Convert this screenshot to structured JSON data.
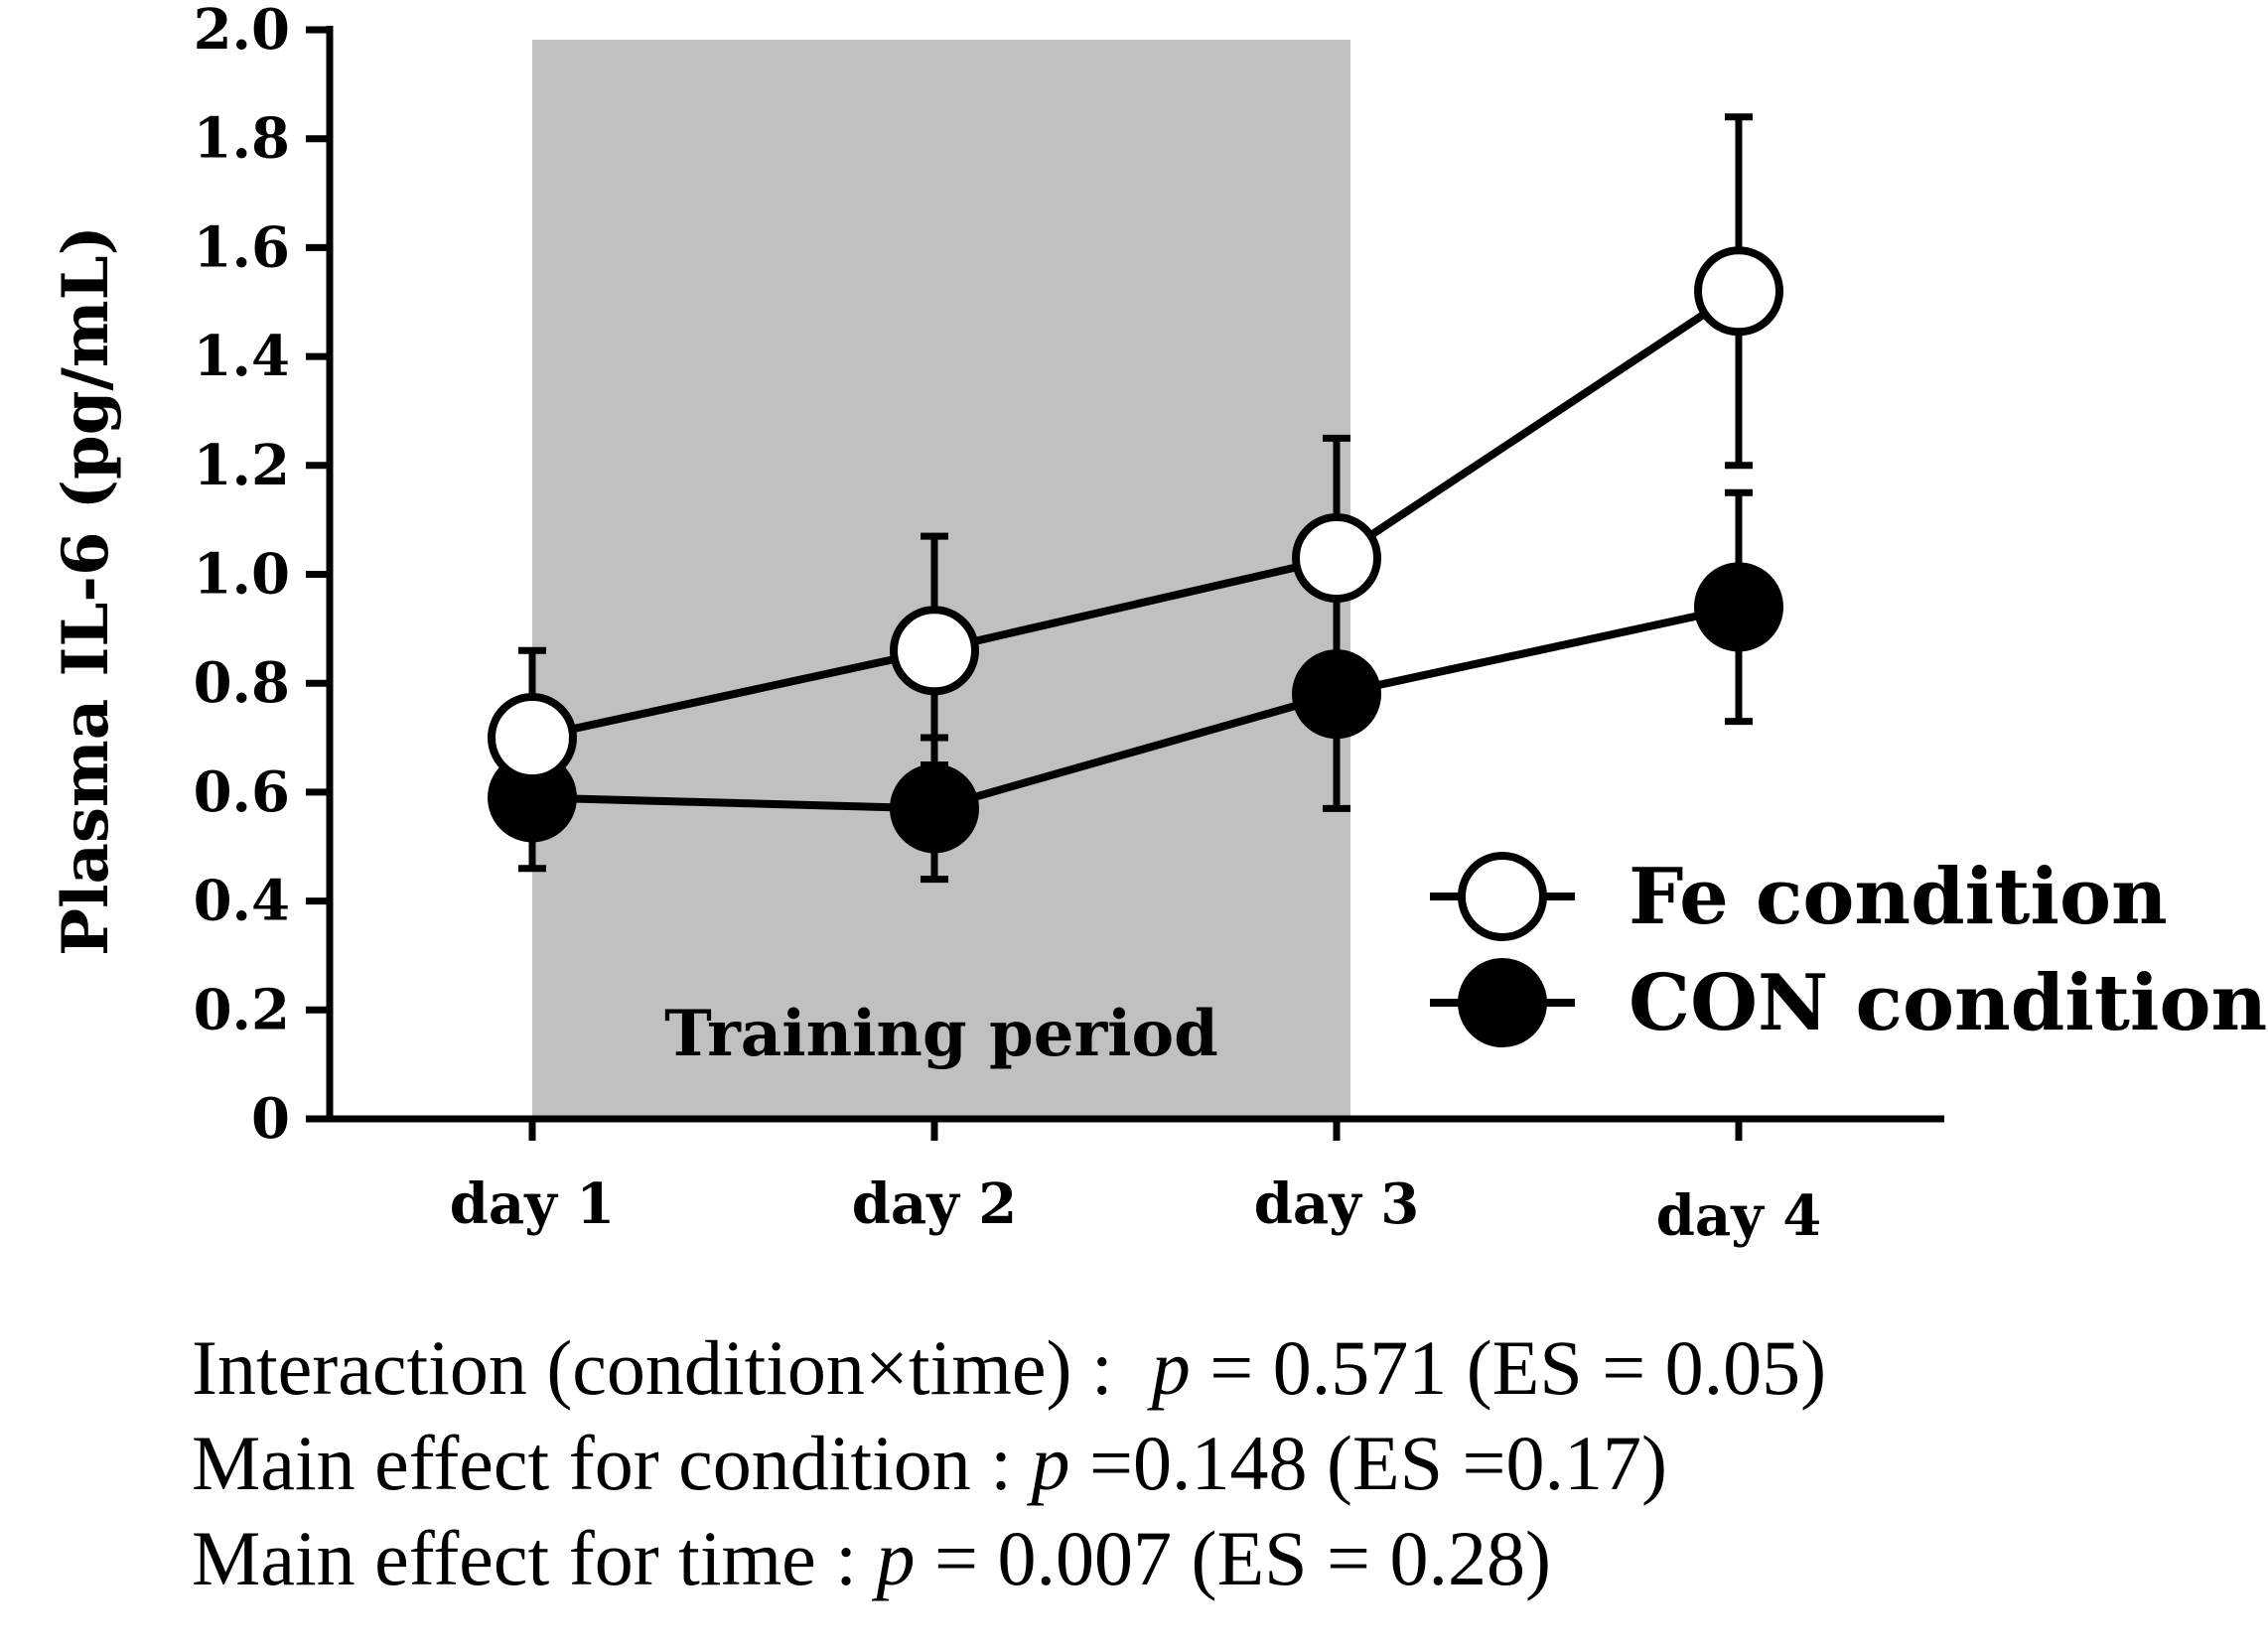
{
  "chart_data": {
    "type": "line",
    "ylabel": "Plasma IL-6 (pg/mL)",
    "xlabel": "",
    "categories": [
      "day 1",
      "day 2",
      "day 3",
      "day 4"
    ],
    "ylim": [
      0,
      2.0
    ],
    "yticks": [
      "0",
      "0.2",
      "0.4",
      "0.6",
      "0.8",
      "1.0",
      "1.2",
      "1.4",
      "1.6",
      "1.8",
      "2.0"
    ],
    "grid": false,
    "shaded_region": {
      "from": "day 1",
      "to": "day 3",
      "label": "Training period",
      "color": "#c0c0c0"
    },
    "legend_position": "right",
    "series": [
      {
        "name": "Fe condition",
        "marker": "open-circle",
        "values": [
          0.7,
          0.86,
          1.03,
          1.52
        ],
        "error": [
          0.16,
          0.21,
          0.22,
          0.32
        ]
      },
      {
        "name": "CON condition",
        "marker": "filled-circle",
        "values": [
          0.59,
          0.57,
          0.78,
          0.94
        ],
        "error": [
          0.13,
          0.13,
          0.21,
          0.21
        ]
      }
    ]
  },
  "stats": {
    "line1_pre": "Interaction (condition×time) :  ",
    "line1_p": "p",
    "line1_post": " = 0.571 (ES = 0.05)",
    "line2_pre": "Main effect for condition : ",
    "line2_p": "p",
    "line2_post": " =0.148 (ES =0.17)",
    "line3_pre": "Main effect for time : ",
    "line3_p": "p",
    "line3_post": " = 0.007 (ES = 0.28)"
  }
}
